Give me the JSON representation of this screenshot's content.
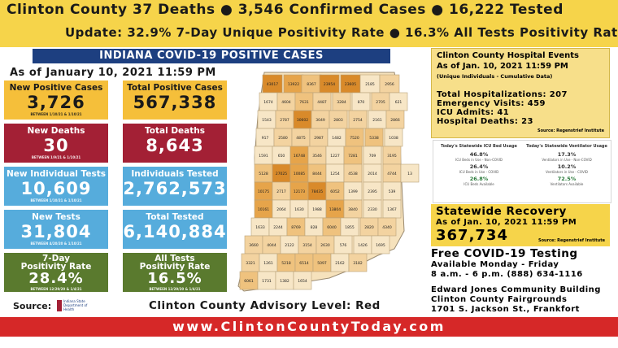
{
  "header": {
    "line1": "Clinton County  37 Deaths  ● 3,546 Confirmed Cases     ● 16,222 Tested",
    "line2": "Update: 32.9% 7-Day Unique Positivity Rate ● 16.3% All Tests Positivity Rate"
  },
  "banner": "INDIANA COVID-19 POSITIVE CASES",
  "as_of": "As of January 10, 2021 11:59 PM",
  "cards": [
    {
      "label": "New Positive Cases",
      "value": "3,726",
      "sub": "BETWEEN 1/10/21 & 1/10/21",
      "color": "yellow"
    },
    {
      "label": "Total Positive Cases",
      "value": "567,338",
      "sub": "",
      "color": "yellow"
    },
    {
      "label": "New Deaths",
      "value": "30",
      "sub": "BETWEEN 1/9/21 & 1/10/21",
      "color": "red"
    },
    {
      "label": "Total Deaths",
      "value": "8,643",
      "sub": "",
      "color": "red"
    },
    {
      "label": "New Individual Tests",
      "value": "10,609",
      "sub": "BETWEEN 1/10/21 & 1/10/21",
      "color": "blue"
    },
    {
      "label": "Individuals Tested",
      "value": "2,762,573",
      "sub": "",
      "color": "blue"
    },
    {
      "label": "New Tests",
      "value": "31,804",
      "sub": "BETWEEN 4/20/20 & 1/10/21",
      "color": "blue"
    },
    {
      "label": "Total Tested",
      "value": "6,140,884",
      "sub": "",
      "color": "blue"
    },
    {
      "label": "7-Day\nPositivity Rate",
      "value": "28.4%",
      "sub": "BETWEEN 12/29/20 & 1/4/21",
      "color": "green"
    },
    {
      "label": "All Tests\nPositivity Rate",
      "value": "16.5%",
      "sub": "BETWEEN 12/29/20 & 1/4/21",
      "color": "green"
    }
  ],
  "source_label": "Source:",
  "isdh_logo_text": "Indiana State Department of Health",
  "advisory": "Clinton County Advisory Level: Red",
  "footer_url": "www.ClintonCountyToday.com",
  "map_counts": [
    "43017",
    "13922",
    "8367",
    "23954",
    "23605",
    "2185",
    "2956",
    "1674",
    "4604",
    "7631",
    "4487",
    "3284",
    "870",
    "2705",
    "621",
    "1543",
    "2787",
    "30602",
    "3049",
    "2803",
    "2754",
    "2161",
    "2866",
    "917",
    "2580",
    "4875",
    "2987",
    "1482",
    "7520",
    "5338",
    "1038",
    "1591",
    "650",
    "16748",
    "3546",
    "1227",
    "7281",
    "709",
    "3195",
    "5128",
    "27025",
    "10085",
    "8444",
    "1254",
    "4538",
    "2014",
    "4744",
    "13",
    "10175",
    "2717",
    "12173",
    "78435",
    "6052",
    "1399",
    "2395",
    "539",
    "10161",
    "2064",
    "1630",
    "1988",
    "13804",
    "3840",
    "2330",
    "1367",
    "1633",
    "2244",
    "8769",
    "828",
    "6040",
    "1855",
    "2820",
    "4340",
    "3660",
    "4044",
    "2122",
    "3154",
    "2630",
    "576",
    "1426",
    "1695",
    "3321",
    "1261",
    "5218",
    "6514",
    "5097",
    "2162",
    "3182",
    "6061",
    "1731",
    "1382",
    "1654"
  ],
  "hospital": {
    "title1": "Clinton County Hospital Events",
    "title2": "As of Jan. 10, 2021 11:59 PM",
    "title3": "(Unique Individuals - Cumulative Data)",
    "stats": [
      "Total Hospitalizations: 207",
      "Emergency Visits: 459",
      "ICU Admits: 41",
      "Hospital Deaths: 23"
    ],
    "source": "Source: Regenstrief Institute"
  },
  "icu": {
    "left_title": "Today's Statewide ICU Bed Usage",
    "right_title": "Today's Statewide Ventilator Usage",
    "left": [
      {
        "pct": "46.8%",
        "cap": "ICU Beds in Use - Non-COVID",
        "green": false
      },
      {
        "pct": "26.4%",
        "cap": "ICU Beds in Use - COVID",
        "green": false
      },
      {
        "pct": "26.8%",
        "cap": "ICU Beds Available",
        "green": true
      }
    ],
    "right": [
      {
        "pct": "17.3%",
        "cap": "Ventilators in Use - Non-COVID",
        "green": false
      },
      {
        "pct": "10.2%",
        "cap": "Ventilators in Use - COVID",
        "green": false
      },
      {
        "pct": "72.5%",
        "cap": "Ventilators Available",
        "green": true
      }
    ]
  },
  "recovery": {
    "title": "Statewide Recovery",
    "as_of": "As of Jan. 10, 2021 11:59 PM",
    "value": "367,734",
    "source": "Source: Regenstrief Institute"
  },
  "testing": {
    "title": "Free COVID-19 Testing",
    "line1": "Available Monday - Friday",
    "line2": "8 a.m. - 6 p.m.    (888) 634-1116",
    "line3": "Edward Jones Community Building",
    "line4": "Clinton County Fairgrounds",
    "line5": "1701 S. Jackson St., Frankfort"
  },
  "colors": {
    "yellow": "#f5bf3a",
    "red": "#a32035",
    "blue": "#56acdc",
    "green": "#5a7a2e",
    "footer": "#d62828",
    "navy": "#1d3f80"
  }
}
